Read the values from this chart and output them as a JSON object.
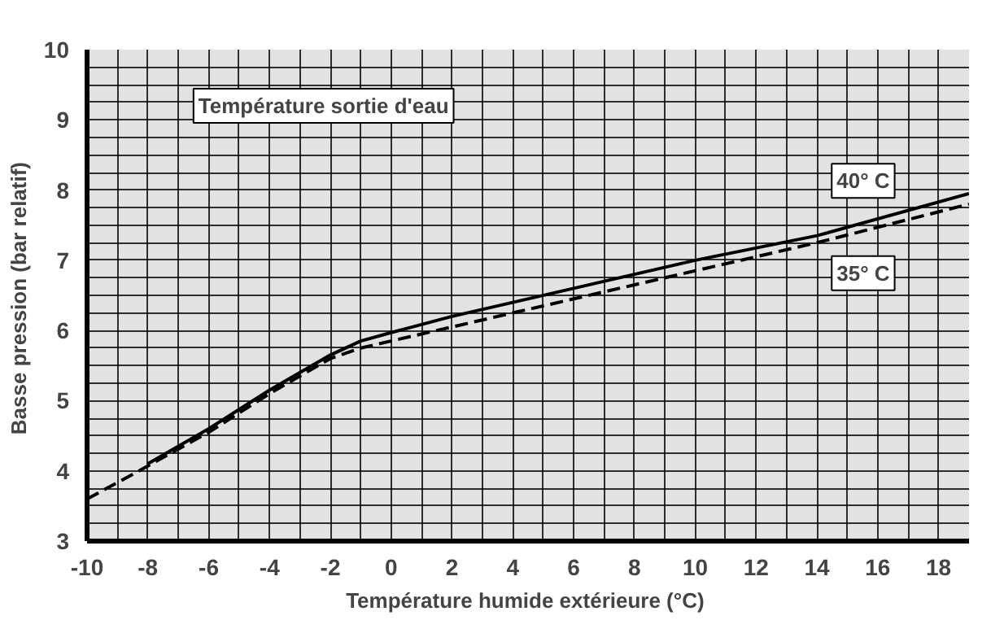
{
  "chart_data": {
    "type": "line",
    "title": "Température sortie d'eau",
    "xlabel": "Température humide extérieure  (°C)",
    "ylabel": "Basse pression  (bar relatif)",
    "xlim": [
      -10,
      19
    ],
    "xticks": [
      -10,
      -8,
      -6,
      -4,
      -2,
      0,
      2,
      4,
      6,
      8,
      10,
      12,
      14,
      16,
      18
    ],
    "ylim": [
      3,
      10
    ],
    "yticks": [
      3,
      4,
      5,
      6,
      7,
      8,
      9,
      10
    ],
    "grid": true,
    "series": [
      {
        "name": "40° C",
        "color": "#000000",
        "line_style": "solid",
        "x": [
          -8,
          -6,
          -4,
          -2,
          -1,
          0,
          2,
          4,
          6,
          10,
          14,
          19
        ],
        "values": [
          4.1,
          4.6,
          5.15,
          5.65,
          5.85,
          5.97,
          6.2,
          6.4,
          6.6,
          7.0,
          7.35,
          7.95
        ]
      },
      {
        "name": "35° C",
        "color": "#000000",
        "line_style": "dashed",
        "x": [
          -10,
          -8.5,
          -6,
          -4,
          -2,
          -1,
          0,
          2,
          4,
          6,
          10,
          14,
          19
        ],
        "values": [
          3.6,
          3.95,
          4.55,
          5.1,
          5.6,
          5.75,
          5.85,
          6.05,
          6.25,
          6.45,
          6.85,
          7.25,
          7.8
        ]
      }
    ]
  }
}
